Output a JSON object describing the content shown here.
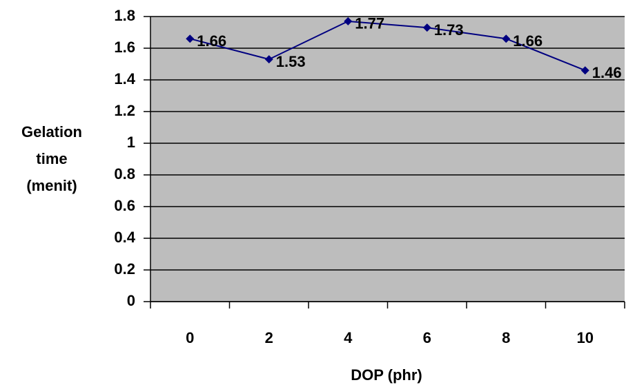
{
  "chart_data": {
    "type": "line",
    "x_label": "DOP (phr)",
    "y_label": [
      "Gelation",
      "time",
      "(menit)"
    ],
    "categories": [
      "0",
      "2",
      "4",
      "6",
      "8",
      "10"
    ],
    "series": [
      {
        "color": "#000080",
        "values": [
          1.66,
          1.53,
          1.77,
          1.73,
          1.66,
          1.46
        ]
      }
    ],
    "ylim": [
      0,
      1.8
    ],
    "yticks": [
      0,
      0.2,
      0.4,
      0.6,
      0.8,
      1,
      1.2,
      1.4,
      1.6,
      1.8
    ],
    "grid": true
  }
}
